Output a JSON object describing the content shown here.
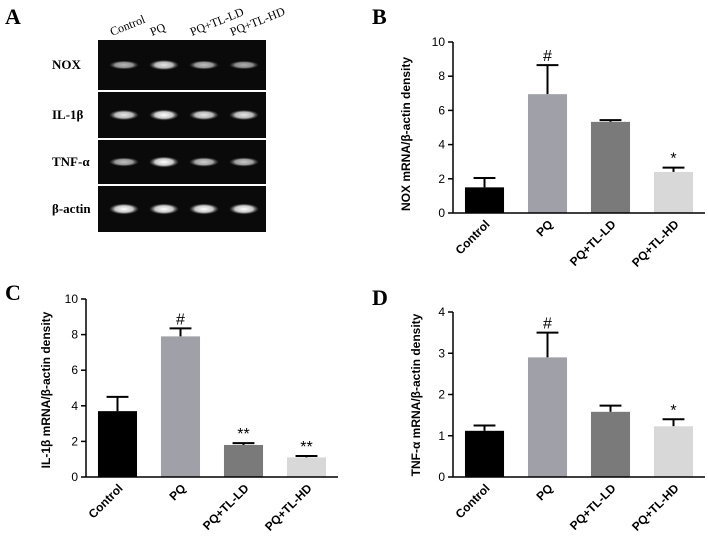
{
  "gel": {
    "letter": "A",
    "lanes": [
      "Control",
      "PQ",
      "PQ+TL-LD",
      "PQ+TL-HD"
    ],
    "rows": [
      "NOX",
      "IL-1β",
      "TNF-α",
      "β-actin"
    ],
    "band_intensity": [
      [
        0.55,
        0.85,
        0.6,
        0.5
      ],
      [
        0.85,
        1.0,
        0.85,
        0.85
      ],
      [
        0.6,
        1.0,
        0.7,
        0.65
      ],
      [
        1.0,
        1.0,
        1.0,
        1.0
      ]
    ]
  },
  "chart_data": [
    {
      "letter": "B",
      "type": "bar",
      "categories": [
        "Control",
        "PQ",
        "PQ+TL-LD",
        "PQ+TL-HD"
      ],
      "values": [
        1.5,
        6.95,
        5.33,
        2.4
      ],
      "errors": [
        0.55,
        1.7,
        0.1,
        0.25
      ],
      "significance": [
        "",
        "#",
        "",
        "*"
      ],
      "ylabel": "NOX mRNA/β-actin density",
      "ylim": [
        0,
        10
      ],
      "yticks": [
        0,
        2,
        4,
        6,
        8,
        10
      ],
      "colors": [
        "#000000",
        "#a0a0a8",
        "#7a7a7a",
        "#d8d8d8"
      ]
    },
    {
      "letter": "C",
      "type": "bar",
      "categories": [
        "Control",
        "PQ",
        "PQ+TL-LD",
        "PQ+TL-HD"
      ],
      "values": [
        3.7,
        7.9,
        1.8,
        1.1
      ],
      "errors": [
        0.8,
        0.45,
        0.1,
        0.08
      ],
      "significance": [
        "",
        "#",
        "**",
        "**"
      ],
      "ylabel": "IL-1β mRNA/β-actin density",
      "ylim": [
        0,
        10
      ],
      "yticks": [
        0,
        2,
        4,
        6,
        8,
        10
      ],
      "colors": [
        "#000000",
        "#a0a0a8",
        "#7a7a7a",
        "#d8d8d8"
      ]
    },
    {
      "letter": "D",
      "type": "bar",
      "categories": [
        "Control",
        "PQ",
        "PQ+TL-LD",
        "PQ+TL-HD"
      ],
      "values": [
        1.12,
        2.9,
        1.58,
        1.23
      ],
      "errors": [
        0.13,
        0.6,
        0.15,
        0.17
      ],
      "significance": [
        "",
        "#",
        "",
        "*"
      ],
      "ylabel": "TNF-α mRNA/β-actin density",
      "ylim": [
        0,
        4
      ],
      "yticks": [
        0,
        1,
        2,
        3,
        4
      ],
      "colors": [
        "#000000",
        "#a0a0a8",
        "#7a7a7a",
        "#d8d8d8"
      ]
    }
  ]
}
